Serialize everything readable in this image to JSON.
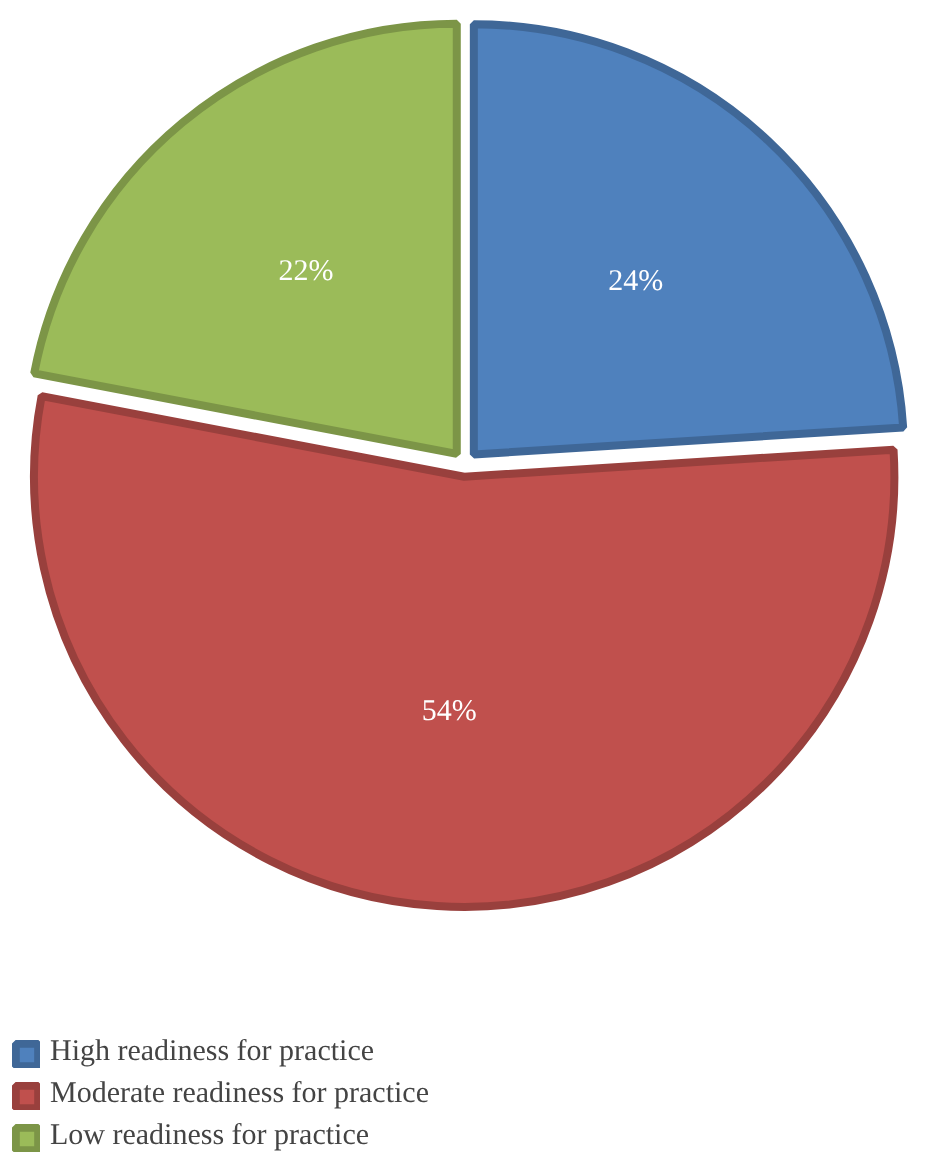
{
  "chart_data": {
    "type": "pie",
    "categories": [
      "High readiness for practice",
      "Moderate readiness for practice",
      "Low readiness for practice"
    ],
    "values": [
      24,
      54,
      22
    ],
    "colors": [
      "#4f81bd",
      "#c0504d",
      "#9bbb59"
    ],
    "value_labels": [
      "24%",
      "54%",
      "22%"
    ],
    "legend": "bottom"
  }
}
